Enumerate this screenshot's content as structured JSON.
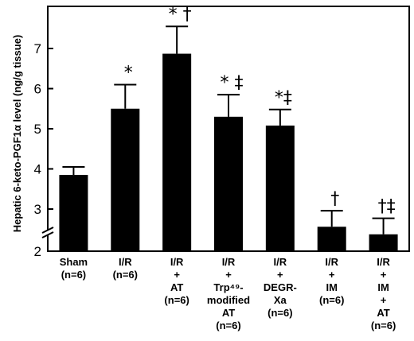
{
  "chart_data": {
    "type": "bar",
    "ylabel": "Hepatic 6-keto-PGF1α level (ng/g tissue)",
    "ylim": [
      2,
      8
    ],
    "y_ticks": [
      "2",
      "3",
      "4",
      "5",
      "6",
      "7"
    ],
    "axis_break": true,
    "grid": false,
    "bar_color": "#000000",
    "categories": [
      [
        "Sham",
        "(n=6)"
      ],
      [
        "I/R",
        "(n=6)"
      ],
      [
        "I/R",
        "+",
        "AT",
        "(n=6)"
      ],
      [
        "I/R",
        "+",
        "Trp⁴⁹-",
        "modified",
        "AT",
        "(n=6)"
      ],
      [
        "I/R",
        "+",
        "DEGR-",
        "Xa",
        "(n=6)"
      ],
      [
        "I/R",
        "+",
        "IM",
        "(n=6)"
      ],
      [
        "I/R",
        "+",
        "IM",
        "+",
        "AT",
        "(n=6)"
      ]
    ],
    "values": [
      3.85,
      5.5,
      6.87,
      5.3,
      5.08,
      2.58,
      2.4
    ],
    "errors": [
      0.2,
      0.6,
      0.68,
      0.55,
      0.4,
      0.38,
      0.38
    ],
    "annotations": [
      "",
      "*",
      "* †",
      "* ‡",
      "*‡",
      "†",
      "†‡"
    ]
  }
}
